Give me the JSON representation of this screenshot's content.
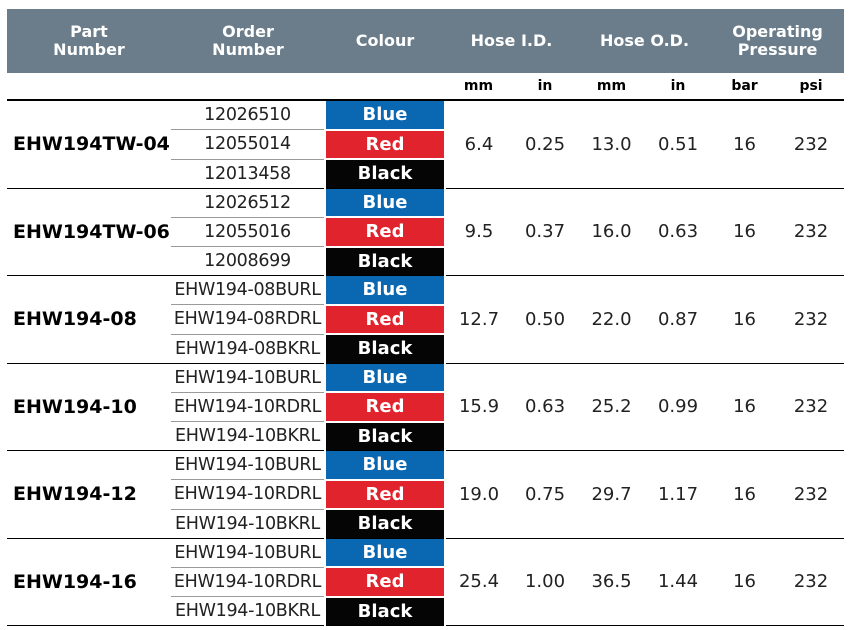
{
  "header": {
    "part_number": [
      "Part",
      "Number"
    ],
    "order_number": [
      "Order",
      "Number"
    ],
    "colour": "Colour",
    "hose_id": "Hose I.D.",
    "hose_od": "Hose O.D.",
    "operating_pressure": [
      "Operating",
      "Pressure"
    ],
    "units": [
      "mm",
      "in",
      "mm",
      "in",
      "bar",
      "psi"
    ]
  },
  "colours": {
    "Blue": "#0a67b2",
    "Red": "#e0232c",
    "Black": "#050505"
  },
  "groups": [
    {
      "part": "EHW194TW-04",
      "orders": [
        "12026510",
        "12055014",
        "12013458"
      ],
      "colours": [
        "Blue",
        "Red",
        "Black"
      ],
      "id_mm": "6.4",
      "id_in": "0.25",
      "od_mm": "13.0",
      "od_in": "0.51",
      "bar": "16",
      "psi": "232"
    },
    {
      "part": "EHW194TW-06",
      "orders": [
        "12026512",
        "12055016",
        "12008699"
      ],
      "colours": [
        "Blue",
        "Red",
        "Black"
      ],
      "id_mm": "9.5",
      "id_in": "0.37",
      "od_mm": "16.0",
      "od_in": "0.63",
      "bar": "16",
      "psi": "232"
    },
    {
      "part": "EHW194-08",
      "orders": [
        "EHW194-08BURL",
        "EHW194-08RDRL",
        "EHW194-08BKRL"
      ],
      "colours": [
        "Blue",
        "Red",
        "Black"
      ],
      "id_mm": "12.7",
      "id_in": "0.50",
      "od_mm": "22.0",
      "od_in": "0.87",
      "bar": "16",
      "psi": "232"
    },
    {
      "part": "EHW194-10",
      "orders": [
        "EHW194-10BURL",
        "EHW194-10RDRL",
        "EHW194-10BKRL"
      ],
      "colours": [
        "Blue",
        "Red",
        "Black"
      ],
      "id_mm": "15.9",
      "id_in": "0.63",
      "od_mm": "25.2",
      "od_in": "0.99",
      "bar": "16",
      "psi": "232"
    },
    {
      "part": "EHW194-12",
      "orders": [
        "EHW194-10BURL",
        "EHW194-10RDRL",
        "EHW194-10BKRL"
      ],
      "colours": [
        "Blue",
        "Red",
        "Black"
      ],
      "id_mm": "19.0",
      "id_in": "0.75",
      "od_mm": "29.7",
      "od_in": "1.17",
      "bar": "16",
      "psi": "232"
    },
    {
      "part": "EHW194-16",
      "orders": [
        "EHW194-10BURL",
        "EHW194-10RDRL",
        "EHW194-10BKRL"
      ],
      "colours": [
        "Blue",
        "Red",
        "Black"
      ],
      "id_mm": "25.4",
      "id_in": "1.00",
      "od_mm": "36.5",
      "od_in": "1.44",
      "bar": "16",
      "psi": "232"
    }
  ]
}
